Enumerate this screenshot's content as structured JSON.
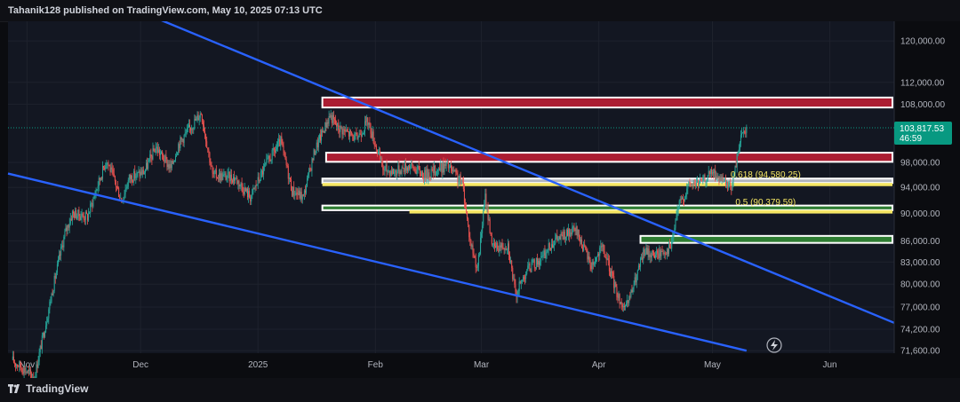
{
  "header": {
    "publisher_text": "Tahanik128 published on TradingView.com, May 10, 2025 07:13 UTC"
  },
  "footer": {
    "brand": "TradingView"
  },
  "colors": {
    "background": "#131722",
    "candle_up": "#26a69a",
    "candle_down": "#ef5350",
    "trendline": "#2962ff",
    "resistance_zone": "#ab1d32",
    "support_zone": "#2e7d32",
    "fib_line": "#f5e663",
    "neutral_zone": "#b2b5be",
    "price_label": "#089981"
  },
  "chart_data": {
    "type": "candlestick",
    "title": "",
    "xlabel": "",
    "ylabel": "",
    "x_range": [
      "2024-10-27",
      "2025-06-18"
    ],
    "ylim": [
      71300,
      124000
    ],
    "y_scale": "log",
    "y_ticks": [
      {
        "value": 120000,
        "label": "120,000.00"
      },
      {
        "value": 112000,
        "label": "112,000.00"
      },
      {
        "value": 108000,
        "label": "108,000.00"
      },
      {
        "value": 98000,
        "label": "98,000.00"
      },
      {
        "value": 94000,
        "label": "94,000.00"
      },
      {
        "value": 90000,
        "label": "90,000.00"
      },
      {
        "value": 86000,
        "label": "86,000.00"
      },
      {
        "value": 83000,
        "label": "83,000.00"
      },
      {
        "value": 80000,
        "label": "80,000.00"
      },
      {
        "value": 77000,
        "label": "77,000.00"
      },
      {
        "value": 74200,
        "label": "74,200.00"
      },
      {
        "value": 71600,
        "label": "71,600.00"
      }
    ],
    "x_ticks": [
      {
        "date": "2024-11-01",
        "label": "Nov"
      },
      {
        "date": "2024-12-01",
        "label": "Dec"
      },
      {
        "date": "2025-01-01",
        "label": "2025"
      },
      {
        "date": "2025-02-01",
        "label": "Feb"
      },
      {
        "date": "2025-03-01",
        "label": "Mar"
      },
      {
        "date": "2025-04-01",
        "label": "Apr"
      },
      {
        "date": "2025-05-01",
        "label": "May"
      },
      {
        "date": "2025-06-01",
        "label": "Jun"
      }
    ],
    "price_path": [
      [
        "2024-10-28",
        70500
      ],
      [
        "2024-11-03",
        68500
      ],
      [
        "2024-11-06",
        75000
      ],
      [
        "2024-11-11",
        87000
      ],
      [
        "2024-11-13",
        90000
      ],
      [
        "2024-11-17",
        89500
      ],
      [
        "2024-11-22",
        98500
      ],
      [
        "2024-11-26",
        92000
      ],
      [
        "2024-11-28",
        95500
      ],
      [
        "2024-12-02",
        96500
      ],
      [
        "2024-12-05",
        100500
      ],
      [
        "2024-12-09",
        97000
      ],
      [
        "2024-12-11",
        101000
      ],
      [
        "2024-12-17",
        106500
      ],
      [
        "2024-12-20",
        96000
      ],
      [
        "2024-12-26",
        95500
      ],
      [
        "2024-12-30",
        92500
      ],
      [
        "2025-01-03",
        97500
      ],
      [
        "2025-01-07",
        101500
      ],
      [
        "2025-01-10",
        93500
      ],
      [
        "2025-01-13",
        92500
      ],
      [
        "2025-01-16",
        100000
      ],
      [
        "2025-01-20",
        106000
      ],
      [
        "2025-01-22",
        104000
      ],
      [
        "2025-01-27",
        102000
      ],
      [
        "2025-01-30",
        105000
      ],
      [
        "2025-02-03",
        97000
      ],
      [
        "2025-02-06",
        96500
      ],
      [
        "2025-02-10",
        97500
      ],
      [
        "2025-02-14",
        96000
      ],
      [
        "2025-02-20",
        97500
      ],
      [
        "2025-02-24",
        94500
      ],
      [
        "2025-02-26",
        86000
      ],
      [
        "2025-02-28",
        82000
      ],
      [
        "2025-03-02",
        92500
      ],
      [
        "2025-03-04",
        85000
      ],
      [
        "2025-03-08",
        85500
      ],
      [
        "2025-03-10",
        78500
      ],
      [
        "2025-03-13",
        82000
      ],
      [
        "2025-03-17",
        83500
      ],
      [
        "2025-03-20",
        86000
      ],
      [
        "2025-03-26",
        87500
      ],
      [
        "2025-03-30",
        82500
      ],
      [
        "2025-04-02",
        85000
      ],
      [
        "2025-04-06",
        78500
      ],
      [
        "2025-04-08",
        76500
      ],
      [
        "2025-04-10",
        79500
      ],
      [
        "2025-04-13",
        84500
      ],
      [
        "2025-04-16",
        84000
      ],
      [
        "2025-04-20",
        85000
      ],
      [
        "2025-04-22",
        91000
      ],
      [
        "2025-04-25",
        94500
      ],
      [
        "2025-04-28",
        94800
      ],
      [
        "2025-05-01",
        96500
      ],
      [
        "2025-05-04",
        94500
      ],
      [
        "2025-05-06",
        94000
      ],
      [
        "2025-05-07",
        96800
      ],
      [
        "2025-05-08",
        101000
      ],
      [
        "2025-05-09",
        103200
      ],
      [
        "2025-05-10",
        103817
      ]
    ],
    "last_price": {
      "value": 103817.53,
      "label": "103,817.53",
      "countdown": "46:59"
    },
    "trendlines": [
      {
        "start": [
          "2024-12-01",
          126000
        ],
        "end": [
          "2025-06-18",
          75000
        ]
      },
      {
        "start": [
          "2024-10-27",
          96200
        ],
        "end": [
          "2025-05-10",
          71600
        ]
      }
    ],
    "zones": [
      {
        "kind": "resistance",
        "start": "2025-01-18",
        "end": "2025-06-18",
        "top": 109200,
        "bottom": 107400
      },
      {
        "kind": "resistance",
        "start": "2025-01-19",
        "end": "2025-06-18",
        "top": 99600,
        "bottom": 98100
      },
      {
        "kind": "neutral",
        "start": "2025-01-18",
        "end": "2025-06-18",
        "top": 95400,
        "bottom": 94700
      },
      {
        "kind": "fib",
        "start": "2025-01-18",
        "end": "2025-06-18",
        "top": 94700,
        "bottom": 94200
      },
      {
        "kind": "support",
        "start": "2025-01-18",
        "end": "2025-06-18",
        "top": 91200,
        "bottom": 90500
      },
      {
        "kind": "fib",
        "start": "2025-02-10",
        "end": "2025-06-18",
        "top": 90500,
        "bottom": 90000
      },
      {
        "kind": "support",
        "start": "2025-04-12",
        "end": "2025-06-18",
        "top": 86700,
        "bottom": 85700
      }
    ],
    "fib_levels": [
      {
        "label": "0.618 (94,580.25)",
        "value": 95550,
        "date": "2025-05-08"
      },
      {
        "label": "0.5 (90,379.59)",
        "value": 91300,
        "date": "2025-05-08"
      }
    ]
  }
}
